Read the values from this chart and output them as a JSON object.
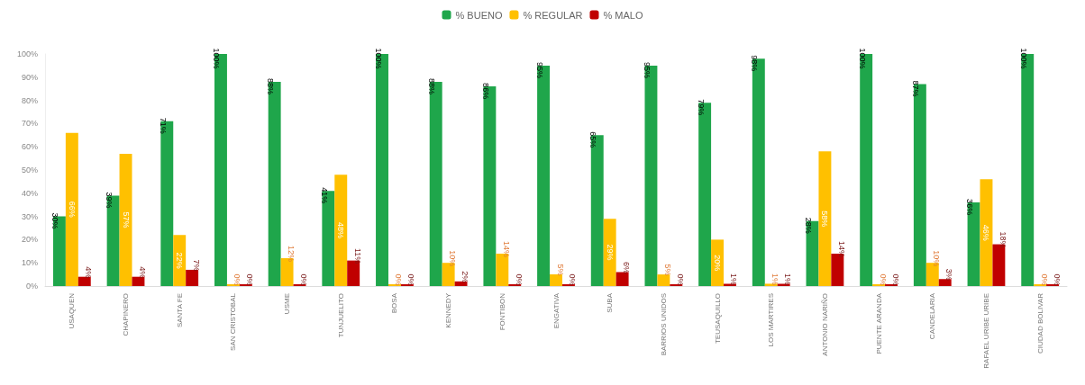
{
  "chart_data": {
    "type": "bar",
    "categories": [
      "USAQUEN",
      "CHAPINERO",
      "SANTA FE",
      "SAN CRISTOBAL",
      "USME",
      "TUNJUELITO",
      "BOSA",
      "KENNEDY",
      "FONTIBON",
      "ENGATIVA",
      "SUBA",
      "BARRIOS UNIDOS",
      "TEUSAQUILLO",
      "LOS MARTIRES",
      "ANTONIO NARIÑO",
      "PUENTE ARANDA",
      "CANDELARIA",
      "RAFAEL URIBE URIBE",
      "CIUDAD BOLIVAR"
    ],
    "series": [
      {
        "name": "% BUENO",
        "color": "#1fa64b",
        "values": [
          30,
          39,
          71,
          100,
          88,
          41,
          100,
          88,
          86,
          95,
          65,
          95,
          79,
          98,
          28,
          100,
          87,
          36,
          100
        ],
        "value_labels": [
          "30%",
          "39%",
          "71%",
          "100%",
          "88%",
          "41%",
          "100%",
          "88%",
          "86%",
          "95%",
          "65%",
          "95%",
          "79%",
          "98%",
          "28%",
          "100%",
          "87%",
          "36%",
          "100%"
        ]
      },
      {
        "name": "% REGULAR",
        "color": "#ffc000",
        "values": [
          66,
          57,
          22,
          0,
          12,
          48,
          0,
          10,
          14,
          5,
          29,
          5,
          20,
          1,
          58,
          0,
          10,
          46,
          0
        ],
        "value_labels": [
          "66%",
          "57%",
          "22%",
          "0%",
          "12%",
          "48%",
          "0%",
          "10%",
          "14%",
          "5%",
          "29%",
          "5%",
          "20%",
          "1%",
          "58%",
          "0%",
          "10%",
          "46%",
          "0%"
        ]
      },
      {
        "name": "% MALO",
        "color": "#c00000",
        "values": [
          4,
          4,
          7,
          0,
          0,
          11,
          0,
          2,
          0,
          0,
          6,
          0,
          1,
          1,
          14,
          0,
          3,
          18,
          0
        ],
        "value_labels": [
          "4%",
          "4%",
          "7%",
          "0%",
          "0%",
          "11%",
          "0%",
          "2%",
          "0%",
          "0%",
          "6%",
          "0%",
          "1%",
          "1%",
          "14%",
          "0%",
          "3%",
          "18%",
          "0%"
        ]
      }
    ],
    "ylim": [
      0,
      100
    ],
    "yticks": [
      {
        "value": 0,
        "label": "0%"
      },
      {
        "value": 10,
        "label": "10%"
      },
      {
        "value": 20,
        "label": "20%"
      },
      {
        "value": 30,
        "label": "30%"
      },
      {
        "value": 40,
        "label": "40%"
      },
      {
        "value": 50,
        "label": "50%"
      },
      {
        "value": 60,
        "label": "60%"
      },
      {
        "value": 70,
        "label": "70%"
      },
      {
        "value": 80,
        "label": "80%"
      },
      {
        "value": 90,
        "label": "90%"
      },
      {
        "value": 100,
        "label": "100%"
      }
    ],
    "legend": "top",
    "grid": false
  }
}
